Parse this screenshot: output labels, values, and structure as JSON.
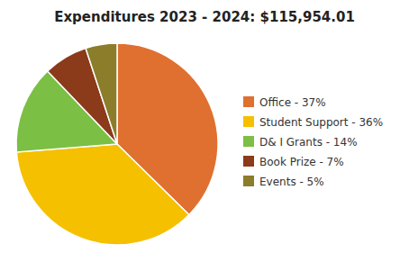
{
  "chart_data": {
    "type": "pie",
    "title": "Expenditures 2023 - 2024: $115,954.01",
    "categories": [
      "Office - 37%",
      "Student Support - 36%",
      "D& I Grants - 14%",
      "Book Prize - 7%",
      "Events - 5%"
    ],
    "values": [
      37,
      36,
      14,
      7,
      5
    ],
    "colors": [
      "#E07030",
      "#F5C000",
      "#7BBF44",
      "#8B3A1A",
      "#8B7D2A"
    ],
    "legend": "right"
  }
}
